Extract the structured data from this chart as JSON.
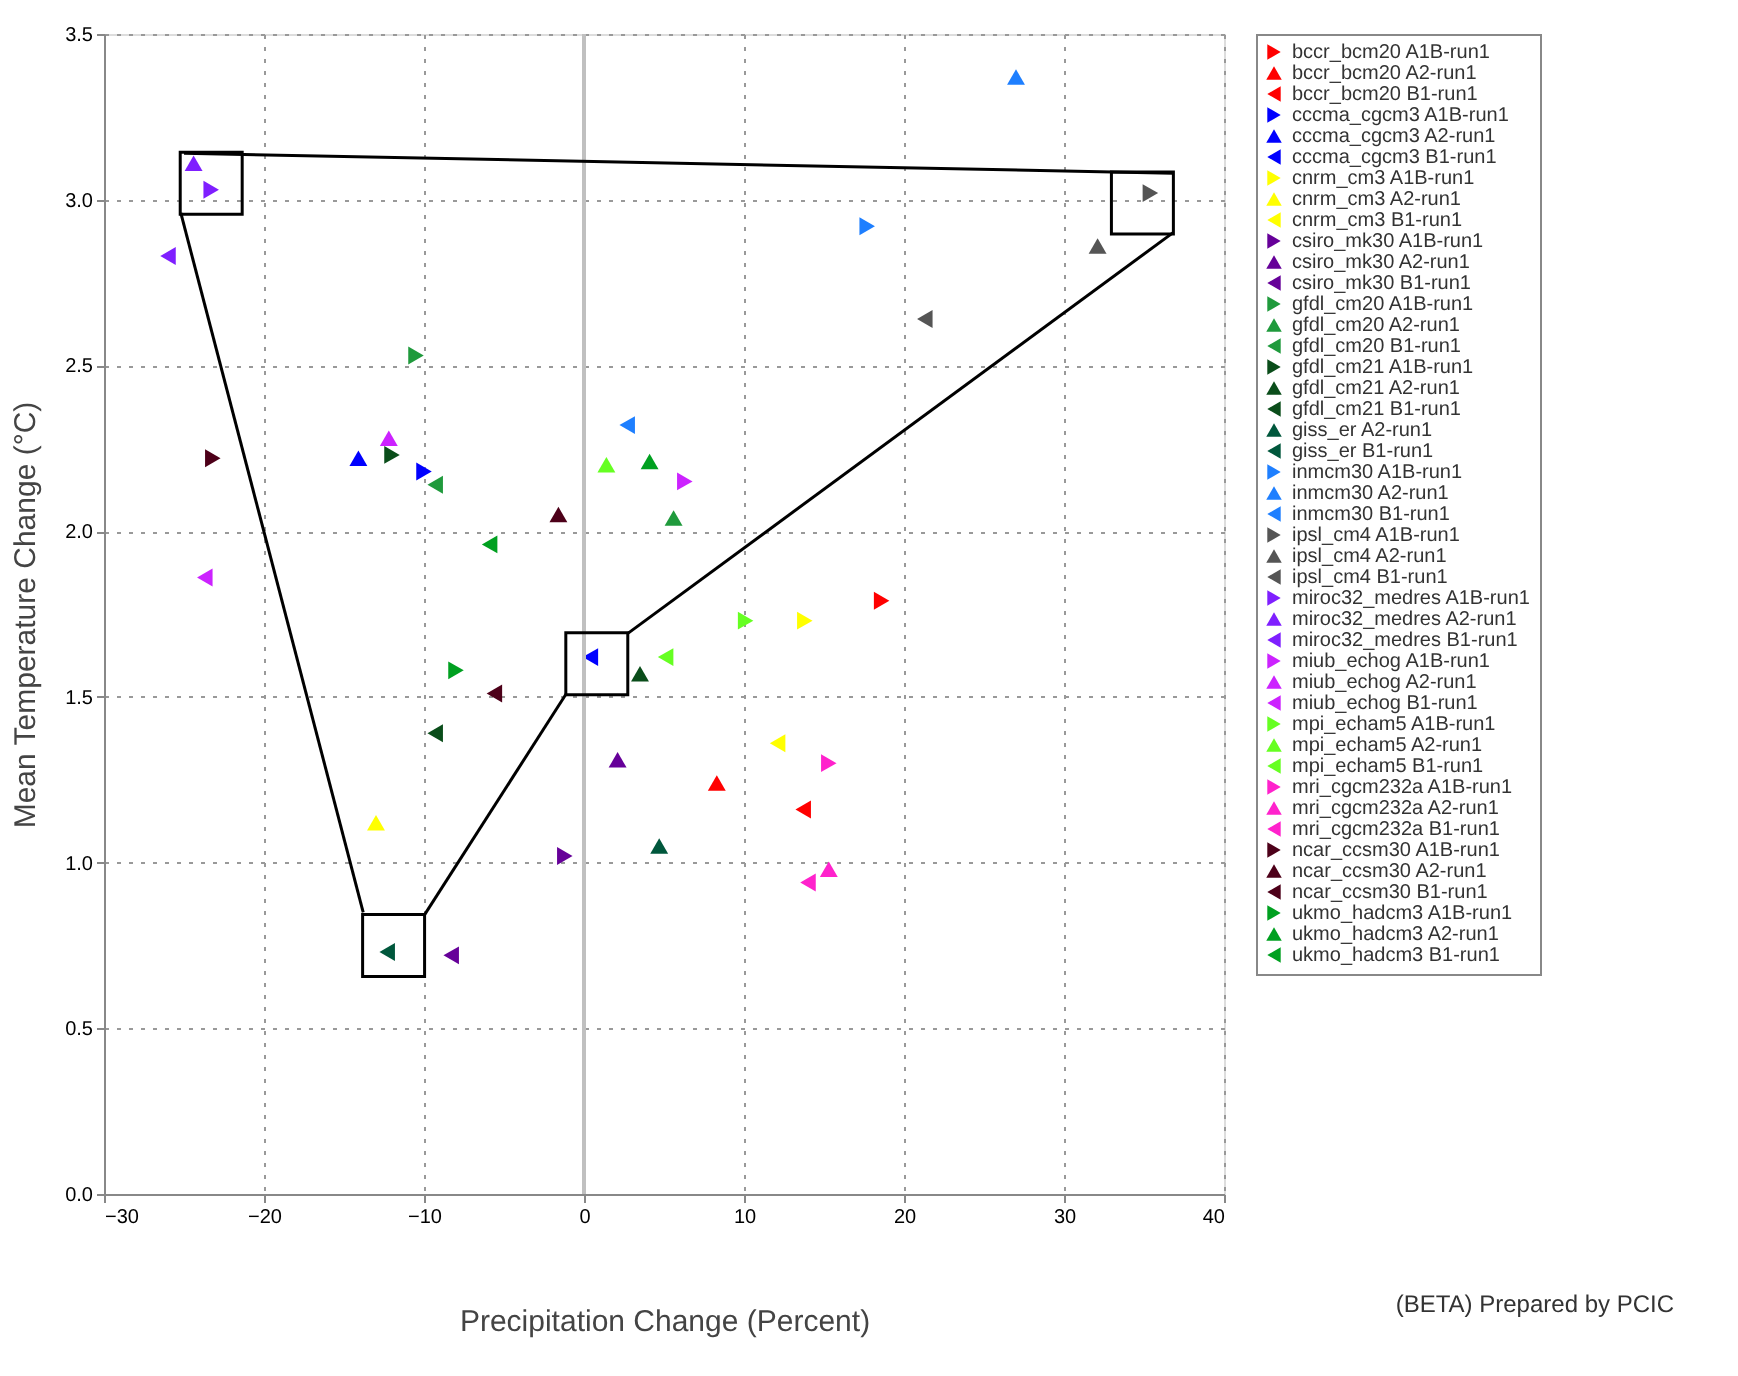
{
  "chart_data": {
    "type": "scatter",
    "xlabel": "Precipitation Change (Percent)",
    "ylabel": "Mean Temperature Change (°C)",
    "xlim": [
      -30,
      40
    ],
    "xticks": [
      -30,
      -20,
      -10,
      0,
      10,
      20,
      30,
      40
    ],
    "ylim": [
      0,
      3.5
    ],
    "yticks": [
      {
        "value": 0,
        "label": "0.0"
      },
      0.5,
      {
        "value": 1,
        "label": "1.0"
      },
      1.5,
      {
        "value": 2,
        "label": "2.0"
      },
      2.5,
      {
        "value": 3,
        "label": "3.0"
      },
      3.5
    ],
    "grid": true,
    "legend": "right",
    "ref_lines": [
      {
        "axis": "x",
        "value": 0,
        "color": "#c0c0c0"
      }
    ],
    "annotations": [
      "(BETA) Prepared by PCIC"
    ],
    "series": [
      {
        "name": "bccr_bcm20 A1B-run1",
        "color": "#ff0000",
        "marker": "triangle-right",
        "x": [
          18.6
        ],
        "values": [
          1.79
        ]
      },
      {
        "name": "bccr_bcm20 A2-run1",
        "color": "#ff0000",
        "marker": "triangle-up",
        "x": [
          8.3
        ],
        "values": [
          1.24
        ]
      },
      {
        "name": "bccr_bcm20 B1-run1",
        "color": "#ff0000",
        "marker": "triangle-left",
        "x": [
          13.7
        ],
        "values": [
          1.16
        ]
      },
      {
        "name": "cccma_cgcm3 A1B-run1",
        "color": "#0000ff",
        "marker": "triangle-right",
        "x": [
          -10.0
        ],
        "values": [
          2.18
        ]
      },
      {
        "name": "cccma_cgcm3 A2-run1",
        "color": "#0000ff",
        "marker": "triangle-up",
        "x": [
          -14.1
        ],
        "values": [
          2.22
        ]
      },
      {
        "name": "cccma_cgcm3 B1-run1",
        "color": "#0000ff",
        "marker": "triangle-left",
        "x": [
          0.4
        ],
        "values": [
          1.62
        ]
      },
      {
        "name": "cnrm_cm3 A1B-run1",
        "color": "#ffff00",
        "marker": "triangle-right",
        "x": [
          13.8
        ],
        "values": [
          1.73
        ]
      },
      {
        "name": "cnrm_cm3 A2-run1",
        "color": "#ffff00",
        "marker": "triangle-up",
        "x": [
          -13.0
        ],
        "values": [
          1.12
        ]
      },
      {
        "name": "cnrm_cm3 B1-run1",
        "color": "#ffff00",
        "marker": "triangle-left",
        "x": [
          12.1
        ],
        "values": [
          1.36
        ]
      },
      {
        "name": "csiro_mk30 A1B-run1",
        "color": "#660099",
        "marker": "triangle-right",
        "x": [
          -1.2
        ],
        "values": [
          1.02
        ]
      },
      {
        "name": "csiro_mk30 A2-run1",
        "color": "#660099",
        "marker": "triangle-up",
        "x": [
          2.1
        ],
        "values": [
          1.31
        ]
      },
      {
        "name": "csiro_mk30 B1-run1",
        "color": "#660099",
        "marker": "triangle-left",
        "x": [
          -8.3
        ],
        "values": [
          0.72
        ]
      },
      {
        "name": "gfdl_cm20 A1B-run1",
        "color": "#1f9a3c",
        "marker": "triangle-right",
        "x": [
          -10.5
        ],
        "values": [
          2.53
        ]
      },
      {
        "name": "gfdl_cm20 A2-run1",
        "color": "#1f9a3c",
        "marker": "triangle-up",
        "x": [
          5.6
        ],
        "values": [
          2.04
        ]
      },
      {
        "name": "gfdl_cm20 B1-run1",
        "color": "#1f9a3c",
        "marker": "triangle-left",
        "x": [
          -9.3
        ],
        "values": [
          2.14
        ]
      },
      {
        "name": "gfdl_cm21 A1B-run1",
        "color": "#0a4d1a",
        "marker": "triangle-right",
        "x": [
          -12.0
        ],
        "values": [
          2.23
        ]
      },
      {
        "name": "gfdl_cm21 A2-run1",
        "color": "#0a4d1a",
        "marker": "triangle-up",
        "x": [
          3.5
        ],
        "values": [
          1.57
        ]
      },
      {
        "name": "gfdl_cm21 B1-run1",
        "color": "#0a4d1a",
        "marker": "triangle-left",
        "x": [
          -9.3
        ],
        "values": [
          1.39
        ]
      },
      {
        "name": "giss_er A2-run1",
        "color": "#00573c",
        "marker": "triangle-up",
        "x": [
          4.7
        ],
        "values": [
          1.05
        ]
      },
      {
        "name": "giss_er B1-run1",
        "color": "#00573c",
        "marker": "triangle-left",
        "x": [
          -12.3
        ],
        "values": [
          0.73
        ]
      },
      {
        "name": "inmcm30 A1B-run1",
        "color": "#1e7fff",
        "marker": "triangle-right",
        "x": [
          17.7
        ],
        "values": [
          2.92
        ]
      },
      {
        "name": "inmcm30 A2-run1",
        "color": "#1e7fff",
        "marker": "triangle-up",
        "x": [
          27.0
        ],
        "values": [
          3.37
        ]
      },
      {
        "name": "inmcm30 B1-run1",
        "color": "#1e7fff",
        "marker": "triangle-left",
        "x": [
          2.7
        ],
        "values": [
          2.32
        ]
      },
      {
        "name": "ipsl_cm4 A1B-run1",
        "color": "#555555",
        "marker": "triangle-right",
        "x": [
          35.4
        ],
        "values": [
          3.02
        ]
      },
      {
        "name": "ipsl_cm4 A2-run1",
        "color": "#555555",
        "marker": "triangle-up",
        "x": [
          32.1
        ],
        "values": [
          2.86
        ]
      },
      {
        "name": "ipsl_cm4 B1-run1",
        "color": "#555555",
        "marker": "triangle-left",
        "x": [
          21.3
        ],
        "values": [
          2.64
        ]
      },
      {
        "name": "miroc32_medres A1B-run1",
        "color": "#7f1fff",
        "marker": "triangle-right",
        "x": [
          -23.3
        ],
        "values": [
          3.03
        ]
      },
      {
        "name": "miroc32_medres A2-run1",
        "color": "#7f1fff",
        "marker": "triangle-up",
        "x": [
          -24.4
        ],
        "values": [
          3.11
        ]
      },
      {
        "name": "miroc32_medres B1-run1",
        "color": "#7f1fff",
        "marker": "triangle-left",
        "x": [
          -26.0
        ],
        "values": [
          2.83
        ]
      },
      {
        "name": "miub_echog A1B-run1",
        "color": "#cc22ff",
        "marker": "triangle-right",
        "x": [
          6.3
        ],
        "values": [
          2.15
        ]
      },
      {
        "name": "miub_echog A2-run1",
        "color": "#cc22ff",
        "marker": "triangle-up",
        "x": [
          -12.2
        ],
        "values": [
          2.28
        ]
      },
      {
        "name": "miub_echog B1-run1",
        "color": "#cc22ff",
        "marker": "triangle-left",
        "x": [
          -23.7
        ],
        "values": [
          1.86
        ]
      },
      {
        "name": "mpi_echam5 A1B-run1",
        "color": "#66ff22",
        "marker": "triangle-right",
        "x": [
          10.1
        ],
        "values": [
          1.73
        ]
      },
      {
        "name": "mpi_echam5 A2-run1",
        "color": "#66ff22",
        "marker": "triangle-up",
        "x": [
          1.4
        ],
        "values": [
          2.2
        ]
      },
      {
        "name": "mpi_echam5 B1-run1",
        "color": "#66ff22",
        "marker": "triangle-left",
        "x": [
          5.1
        ],
        "values": [
          1.62
        ]
      },
      {
        "name": "mri_cgcm232a A1B-run1",
        "color": "#ff22cc",
        "marker": "triangle-right",
        "x": [
          15.3
        ],
        "values": [
          1.3
        ]
      },
      {
        "name": "mri_cgcm232a A2-run1",
        "color": "#ff22cc",
        "marker": "triangle-up",
        "x": [
          15.3
        ],
        "values": [
          0.98
        ]
      },
      {
        "name": "mri_cgcm232a B1-run1",
        "color": "#ff22cc",
        "marker": "triangle-left",
        "x": [
          14.0
        ],
        "values": [
          0.94
        ]
      },
      {
        "name": "ncar_ccsm30 A1B-run1",
        "color": "#4d0019",
        "marker": "triangle-right",
        "x": [
          -23.2
        ],
        "values": [
          2.22
        ]
      },
      {
        "name": "ncar_ccsm30 A2-run1",
        "color": "#4d0019",
        "marker": "triangle-up",
        "x": [
          -1.6
        ],
        "values": [
          2.05
        ]
      },
      {
        "name": "ncar_ccsm30 B1-run1",
        "color": "#4d0019",
        "marker": "triangle-left",
        "x": [
          -5.6
        ],
        "values": [
          1.51
        ]
      },
      {
        "name": "ukmo_hadcm3 A1B-run1",
        "color": "#00a020",
        "marker": "triangle-right",
        "x": [
          -8.0
        ],
        "values": [
          1.58
        ]
      },
      {
        "name": "ukmo_hadcm3 A2-run1",
        "color": "#00a020",
        "marker": "triangle-up",
        "x": [
          4.1
        ],
        "values": [
          2.21
        ]
      },
      {
        "name": "ukmo_hadcm3 B1-run1",
        "color": "#00a020",
        "marker": "triangle-left",
        "x": [
          -5.9
        ],
        "values": [
          1.96
        ]
      },
      {
        "type": "line",
        "color": "#000000",
        "marker": "none",
        "x": [
          -25.0,
          36.8
        ],
        "values": [
          3.14,
          3.08
        ]
      },
      {
        "type": "line",
        "color": "#000000",
        "marker": "none",
        "x": [
          2.7,
          36.8
        ],
        "values": [
          1.69,
          2.9
        ]
      },
      {
        "type": "line",
        "color": "#000000",
        "marker": "none",
        "x": [
          -10.0,
          -1.1
        ],
        "values": [
          0.84,
          1.51
        ]
      },
      {
        "type": "line",
        "color": "#000000",
        "marker": "none",
        "x": [
          -25.2,
          -13.8
        ],
        "values": [
          2.96,
          0.85
        ]
      },
      {
        "type": "scatter",
        "color": "#000000",
        "marker": "square",
        "x": [
          -23.3,
          34.9,
          0.8,
          -11.9
        ],
        "values": [
          3.05,
          2.99,
          1.6,
          0.75
        ]
      }
    ]
  }
}
